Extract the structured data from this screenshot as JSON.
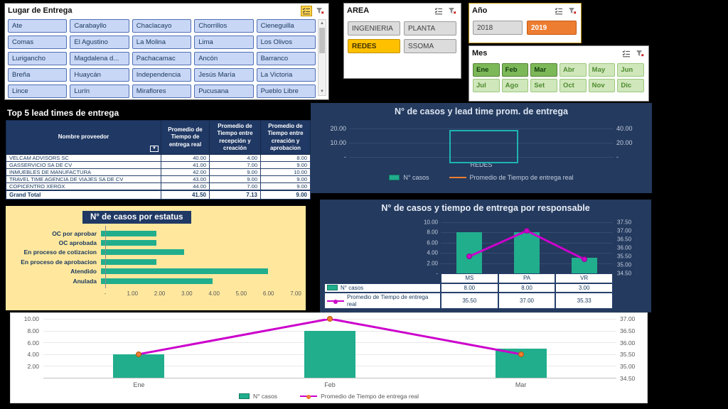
{
  "colors": {
    "background": "#000000",
    "teal": "#21ae8d",
    "magenta_line": "#cc00cc",
    "orange": "#ed7d31",
    "navy": "#1f3864",
    "panel_navy": "#243a5e",
    "cream": "#ffe89e",
    "slicer_blue": "#c9d7f6",
    "selected_yellow": "#ffc000",
    "selected_green": "#7db858"
  },
  "icons": {
    "multi_select": "checklist",
    "clear_filter": "funnel-x",
    "scroll_up": "▲",
    "scroll_down": "▼",
    "header_filter": "▼"
  },
  "slicers": {
    "lugar": {
      "title": "Lugar de Entrega",
      "items": [
        "Ate",
        "Carabayllo",
        "Chaclacayo",
        "Chorrillos",
        "Cieneguilla",
        "Comas",
        "El Agustino",
        "La Molina",
        "Lima",
        "Los Olivos",
        "Lurigancho",
        "Magdalena d...",
        "Pachacamac",
        "Ancón",
        "Barranco",
        "Breña",
        "Huaycán",
        "Independencia",
        "Jesús María",
        "La Victoria",
        "Lince",
        "Lurín",
        "Miraflores",
        "Pucusana",
        "Pueblo Libre"
      ]
    },
    "area": {
      "title": "AREA",
      "items": [
        {
          "label": "INGENIERIA",
          "selected": false
        },
        {
          "label": "PLANTA",
          "selected": false
        },
        {
          "label": "REDES",
          "selected": true
        },
        {
          "label": "SSOMA",
          "selected": false
        }
      ]
    },
    "anio": {
      "title": "Año",
      "items": [
        {
          "label": "2018",
          "selected": false
        },
        {
          "label": "2019",
          "selected": true
        }
      ]
    },
    "mes": {
      "title": "Mes",
      "items": [
        {
          "label": "Ene",
          "selected": true
        },
        {
          "label": "Feb",
          "selected": true
        },
        {
          "label": "Mar",
          "selected": true
        },
        {
          "label": "Abr",
          "selected": false
        },
        {
          "label": "May",
          "selected": false
        },
        {
          "label": "Jun",
          "selected": false
        },
        {
          "label": "Jul",
          "selected": false
        },
        {
          "label": "Ago",
          "selected": false
        },
        {
          "label": "Set",
          "selected": false
        },
        {
          "label": "Oct",
          "selected": false
        },
        {
          "label": "Nov",
          "selected": false
        },
        {
          "label": "Dic",
          "selected": false
        }
      ]
    }
  },
  "table": {
    "title": "Top 5 lead times de entrega",
    "headers": [
      "Nombre proveedor",
      "Promedio de Tiempo de entrega real",
      "Promedio de Tiempo entre recepción y creación",
      "Promedio de Tiempo entre creación y aprobacion"
    ],
    "rows": [
      [
        "VELCAM ADVISORS SC",
        "40.00",
        "4.00",
        "8.00"
      ],
      [
        "GASSERVICIO SA DE CV",
        "41.00",
        "7.00",
        "9.00"
      ],
      [
        "INMUEBLES DE MANUFACTURA",
        "42.00",
        "9.00",
        "10.00"
      ],
      [
        "TRAVEL TIME AGENCIA DE VIAJES SA DE CV",
        "43.00",
        "9.00",
        "9.00"
      ],
      [
        "COPICENTRO XEROX",
        "44.00",
        "7.00",
        "9.00"
      ]
    ],
    "total_row": [
      "Grand Total",
      "41.50",
      "7.13",
      "9.00"
    ]
  },
  "chart_data": [
    {
      "id": "redes",
      "type": "combo",
      "title": "N° de casos y lead time prom. de entrega",
      "categories": [
        "REDES"
      ],
      "left_axis_ticks": [
        "20.00",
        "10.00",
        "-"
      ],
      "left_range": [
        0,
        20
      ],
      "right_axis_ticks": [
        "40.00",
        "20.00",
        "-"
      ],
      "right_range": [
        0,
        40
      ],
      "series": [
        {
          "name": "N° casos",
          "type": "bar"
        },
        {
          "name": "Promedio de Tiempo de entrega real",
          "type": "line"
        }
      ],
      "legend_position": "bottom",
      "selection_outline": true
    },
    {
      "id": "estatus",
      "type": "bar",
      "orientation": "horizontal",
      "title": "N° de casos por estatus",
      "categories": [
        "OC por aprobar",
        "OC aprobada",
        "En proceso de cotizacion",
        "En proceso de aprobacion",
        "Atendido",
        "Anulada"
      ],
      "values": [
        2,
        2,
        3,
        2,
        6,
        4
      ],
      "xlim": [
        0,
        7
      ],
      "x_ticks": [
        "-",
        "1.00",
        "2.00",
        "3.00",
        "4.00",
        "5.00",
        "6.00",
        "7.00"
      ]
    },
    {
      "id": "responsable",
      "type": "combo",
      "title": "N° de casos y tiempo de entrega por responsable",
      "categories": [
        "MS",
        "PA",
        "VR"
      ],
      "series": [
        {
          "name": "N° casos",
          "type": "bar",
          "axis": "left",
          "values": [
            8,
            8,
            3
          ]
        },
        {
          "name": "Promedio de Tiempo de entrega real",
          "type": "line",
          "axis": "right",
          "values": [
            35.5,
            37.0,
            35.33
          ]
        }
      ],
      "left_axis_ticks": [
        "10.00",
        "8.00",
        "6.00",
        "4.00",
        "2.00",
        "-"
      ],
      "left_range": [
        0,
        10
      ],
      "right_axis_ticks": [
        "37.50",
        "37.00",
        "36.50",
        "36.00",
        "35.50",
        "35.00",
        "34.50"
      ],
      "right_range": [
        34.5,
        37.5
      ],
      "data_table": {
        "rows": [
          [
            "8.00",
            "8.00",
            "3.00"
          ],
          [
            "35.50",
            "37.00",
            "35.33"
          ]
        ]
      },
      "legend_position": "data-table"
    },
    {
      "id": "monthly",
      "type": "combo",
      "title": "",
      "categories": [
        "Ene",
        "Feb",
        "Mar"
      ],
      "series": [
        {
          "name": "N° casos",
          "type": "bar",
          "axis": "left",
          "values": [
            4,
            8,
            5
          ]
        },
        {
          "name": "Promedio de Tiempo de entrega real",
          "type": "line",
          "axis": "right",
          "values": [
            35.5,
            37.0,
            35.5
          ]
        }
      ],
      "left_axis_ticks": [
        "10.00",
        "8.00",
        "6.00",
        "4.00",
        "2.00"
      ],
      "left_range": [
        0,
        10
      ],
      "right_axis_ticks": [
        "37.00",
        "36.50",
        "36.00",
        "35.50",
        "35.00",
        "34.50"
      ],
      "right_range": [
        34.5,
        37.0
      ],
      "grid": true,
      "legend_position": "bottom"
    }
  ]
}
